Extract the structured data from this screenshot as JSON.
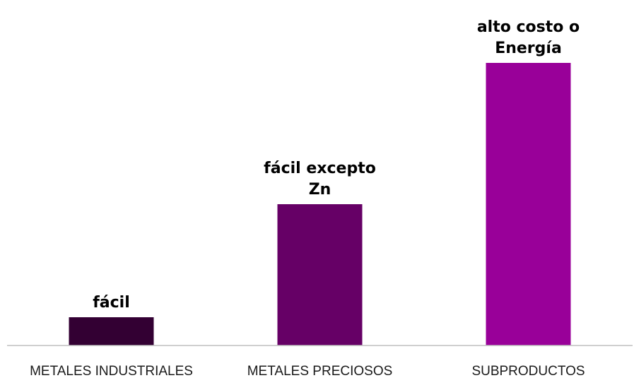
{
  "chart_data": {
    "type": "bar",
    "title": "",
    "xlabel": "",
    "ylabel": "",
    "categories": [
      "METALES INDUSTRIALES",
      "METALES PRECIOSOS",
      "SUBPRODUCTOS"
    ],
    "values": [
      1,
      5,
      10
    ],
    "data_labels": [
      [
        "fácil"
      ],
      [
        "fácil excepto",
        "Zn"
      ],
      [
        "alto costo o",
        "Energía"
      ]
    ],
    "colors": [
      "#330033",
      "#660066",
      "#990099"
    ],
    "ylim": [
      0,
      10
    ],
    "grid": false,
    "legend": "none"
  }
}
